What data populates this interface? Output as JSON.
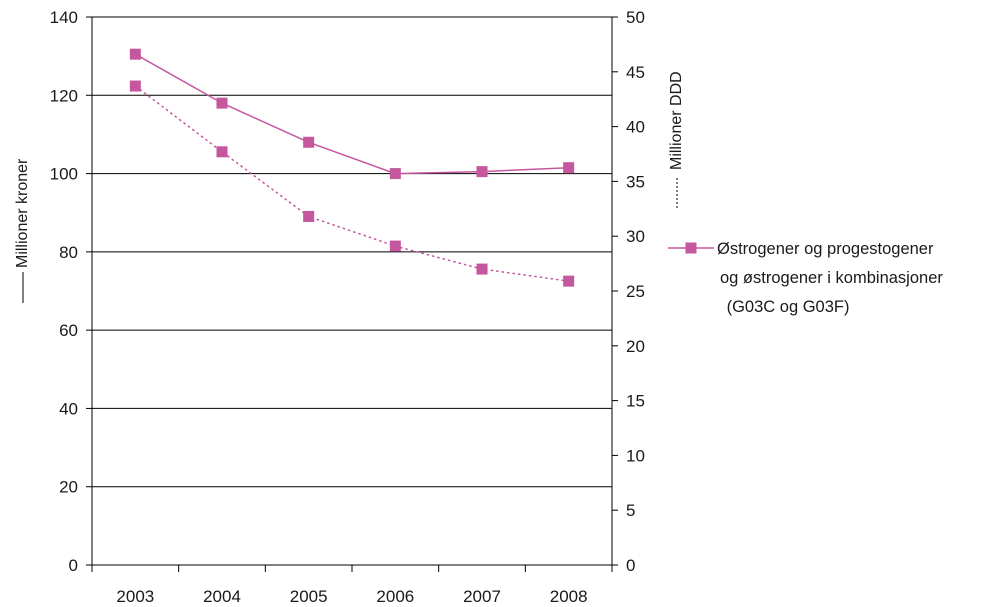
{
  "chart_data": {
    "type": "line",
    "categories": [
      "2003",
      "2004",
      "2005",
      "2006",
      "2007",
      "2008"
    ],
    "y_left": {
      "label": "Millioner kroner",
      "ylim": [
        0,
        140
      ],
      "ticks": [
        "0",
        "20",
        "40",
        "60",
        "80",
        "100",
        "120",
        "140"
      ]
    },
    "y_right": {
      "label": "Millioner DDD",
      "ylim": [
        0,
        50
      ],
      "ticks": [
        "0",
        "5",
        "10",
        "15",
        "20",
        "25",
        "30",
        "35",
        "40",
        "45",
        "50"
      ]
    },
    "series": [
      {
        "name": "Østrogener og progestogener og østrogener i kombinasjoner (G03C og G03F)",
        "axis": "left",
        "line_style": "solid",
        "values": [
          130.5,
          118,
          108,
          100,
          100.5,
          101.5
        ]
      },
      {
        "axis": "right",
        "line_style": "dotted",
        "values": [
          43.7,
          37.7,
          31.8,
          29.1,
          27.0,
          25.9
        ]
      }
    ],
    "legend": {
      "position": "right",
      "lines": [
        "Østrogener og progestogener",
        "og østrogener i kombinasjoner",
        " (G03C og G03F)"
      ]
    },
    "grid": true,
    "colors": {
      "series": "#c5579e",
      "marker": "#c5579e",
      "grid": "#000000",
      "axis": "#000000"
    }
  }
}
